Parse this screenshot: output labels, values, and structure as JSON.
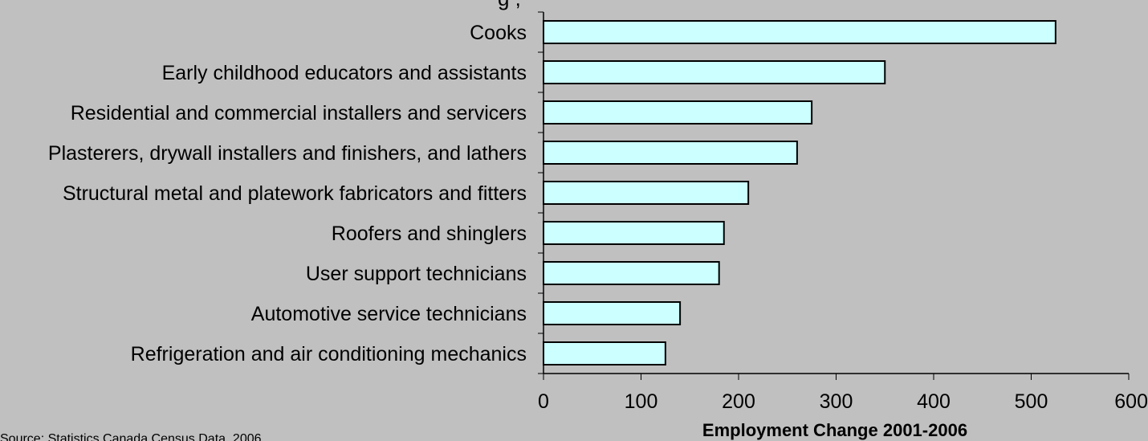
{
  "chart_data": {
    "type": "bar",
    "orientation": "horizontal",
    "title": "",
    "xlabel": "Employment Change 2001-2006",
    "ylabel": "",
    "xlim": [
      0,
      600
    ],
    "xticks": [
      0,
      100,
      200,
      300,
      400,
      500,
      600
    ],
    "grid": false,
    "categories": [
      "Cooks",
      "Early childhood educators and assistants",
      "Residential and commercial installers and servicers",
      "Plasterers, drywall installers and finishers, and lathers",
      "Structural metal and platework fabricators and fitters",
      "Roofers and shinglers",
      "User support technicians",
      "Automotive service technicians",
      "Refrigeration and air conditioning mechanics"
    ],
    "values": [
      525,
      350,
      275,
      260,
      210,
      185,
      180,
      140,
      125
    ],
    "colors": {
      "bar_fill": "#ccffff",
      "bar_stroke": "#000000",
      "background": "#c0c0c0"
    }
  },
  "footnote": "Source: Statistics Canada Census Data, 2006",
  "top_partial_text": "g ,"
}
